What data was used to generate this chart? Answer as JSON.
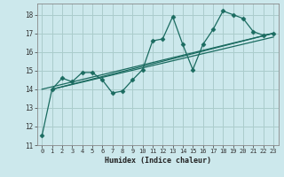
{
  "title": "",
  "xlabel": "Humidex (Indice chaleur)",
  "ylabel": "",
  "background_color": "#cce8ec",
  "grid_color": "#aacccc",
  "line_color": "#1a6b60",
  "xlim": [
    -0.5,
    23.5
  ],
  "ylim": [
    11,
    18.6
  ],
  "yticks": [
    11,
    12,
    13,
    14,
    15,
    16,
    17,
    18
  ],
  "xticks": [
    0,
    1,
    2,
    3,
    4,
    5,
    6,
    7,
    8,
    9,
    10,
    11,
    12,
    13,
    14,
    15,
    16,
    17,
    18,
    19,
    20,
    21,
    22,
    23
  ],
  "series": [
    {
      "x": [
        0,
        1,
        2,
        3,
        4,
        5,
        6,
        7,
        8,
        9,
        10,
        11,
        12,
        13,
        14,
        15,
        16,
        17,
        18,
        19,
        20,
        21,
        22,
        23
      ],
      "y": [
        11.5,
        14.0,
        14.6,
        14.4,
        14.9,
        14.9,
        14.5,
        13.8,
        13.9,
        14.5,
        15.05,
        16.6,
        16.7,
        17.9,
        16.4,
        15.05,
        16.4,
        17.2,
        18.2,
        18.0,
        17.8,
        17.1,
        16.9,
        17.0
      ],
      "marker": "D",
      "markersize": 2.5
    },
    {
      "x": [
        0,
        23
      ],
      "y": [
        14.0,
        17.0
      ],
      "marker": null
    },
    {
      "x": [
        1,
        23
      ],
      "y": [
        14.0,
        17.0
      ],
      "marker": null
    },
    {
      "x": [
        1,
        23
      ],
      "y": [
        14.0,
        16.8
      ],
      "marker": null
    }
  ]
}
